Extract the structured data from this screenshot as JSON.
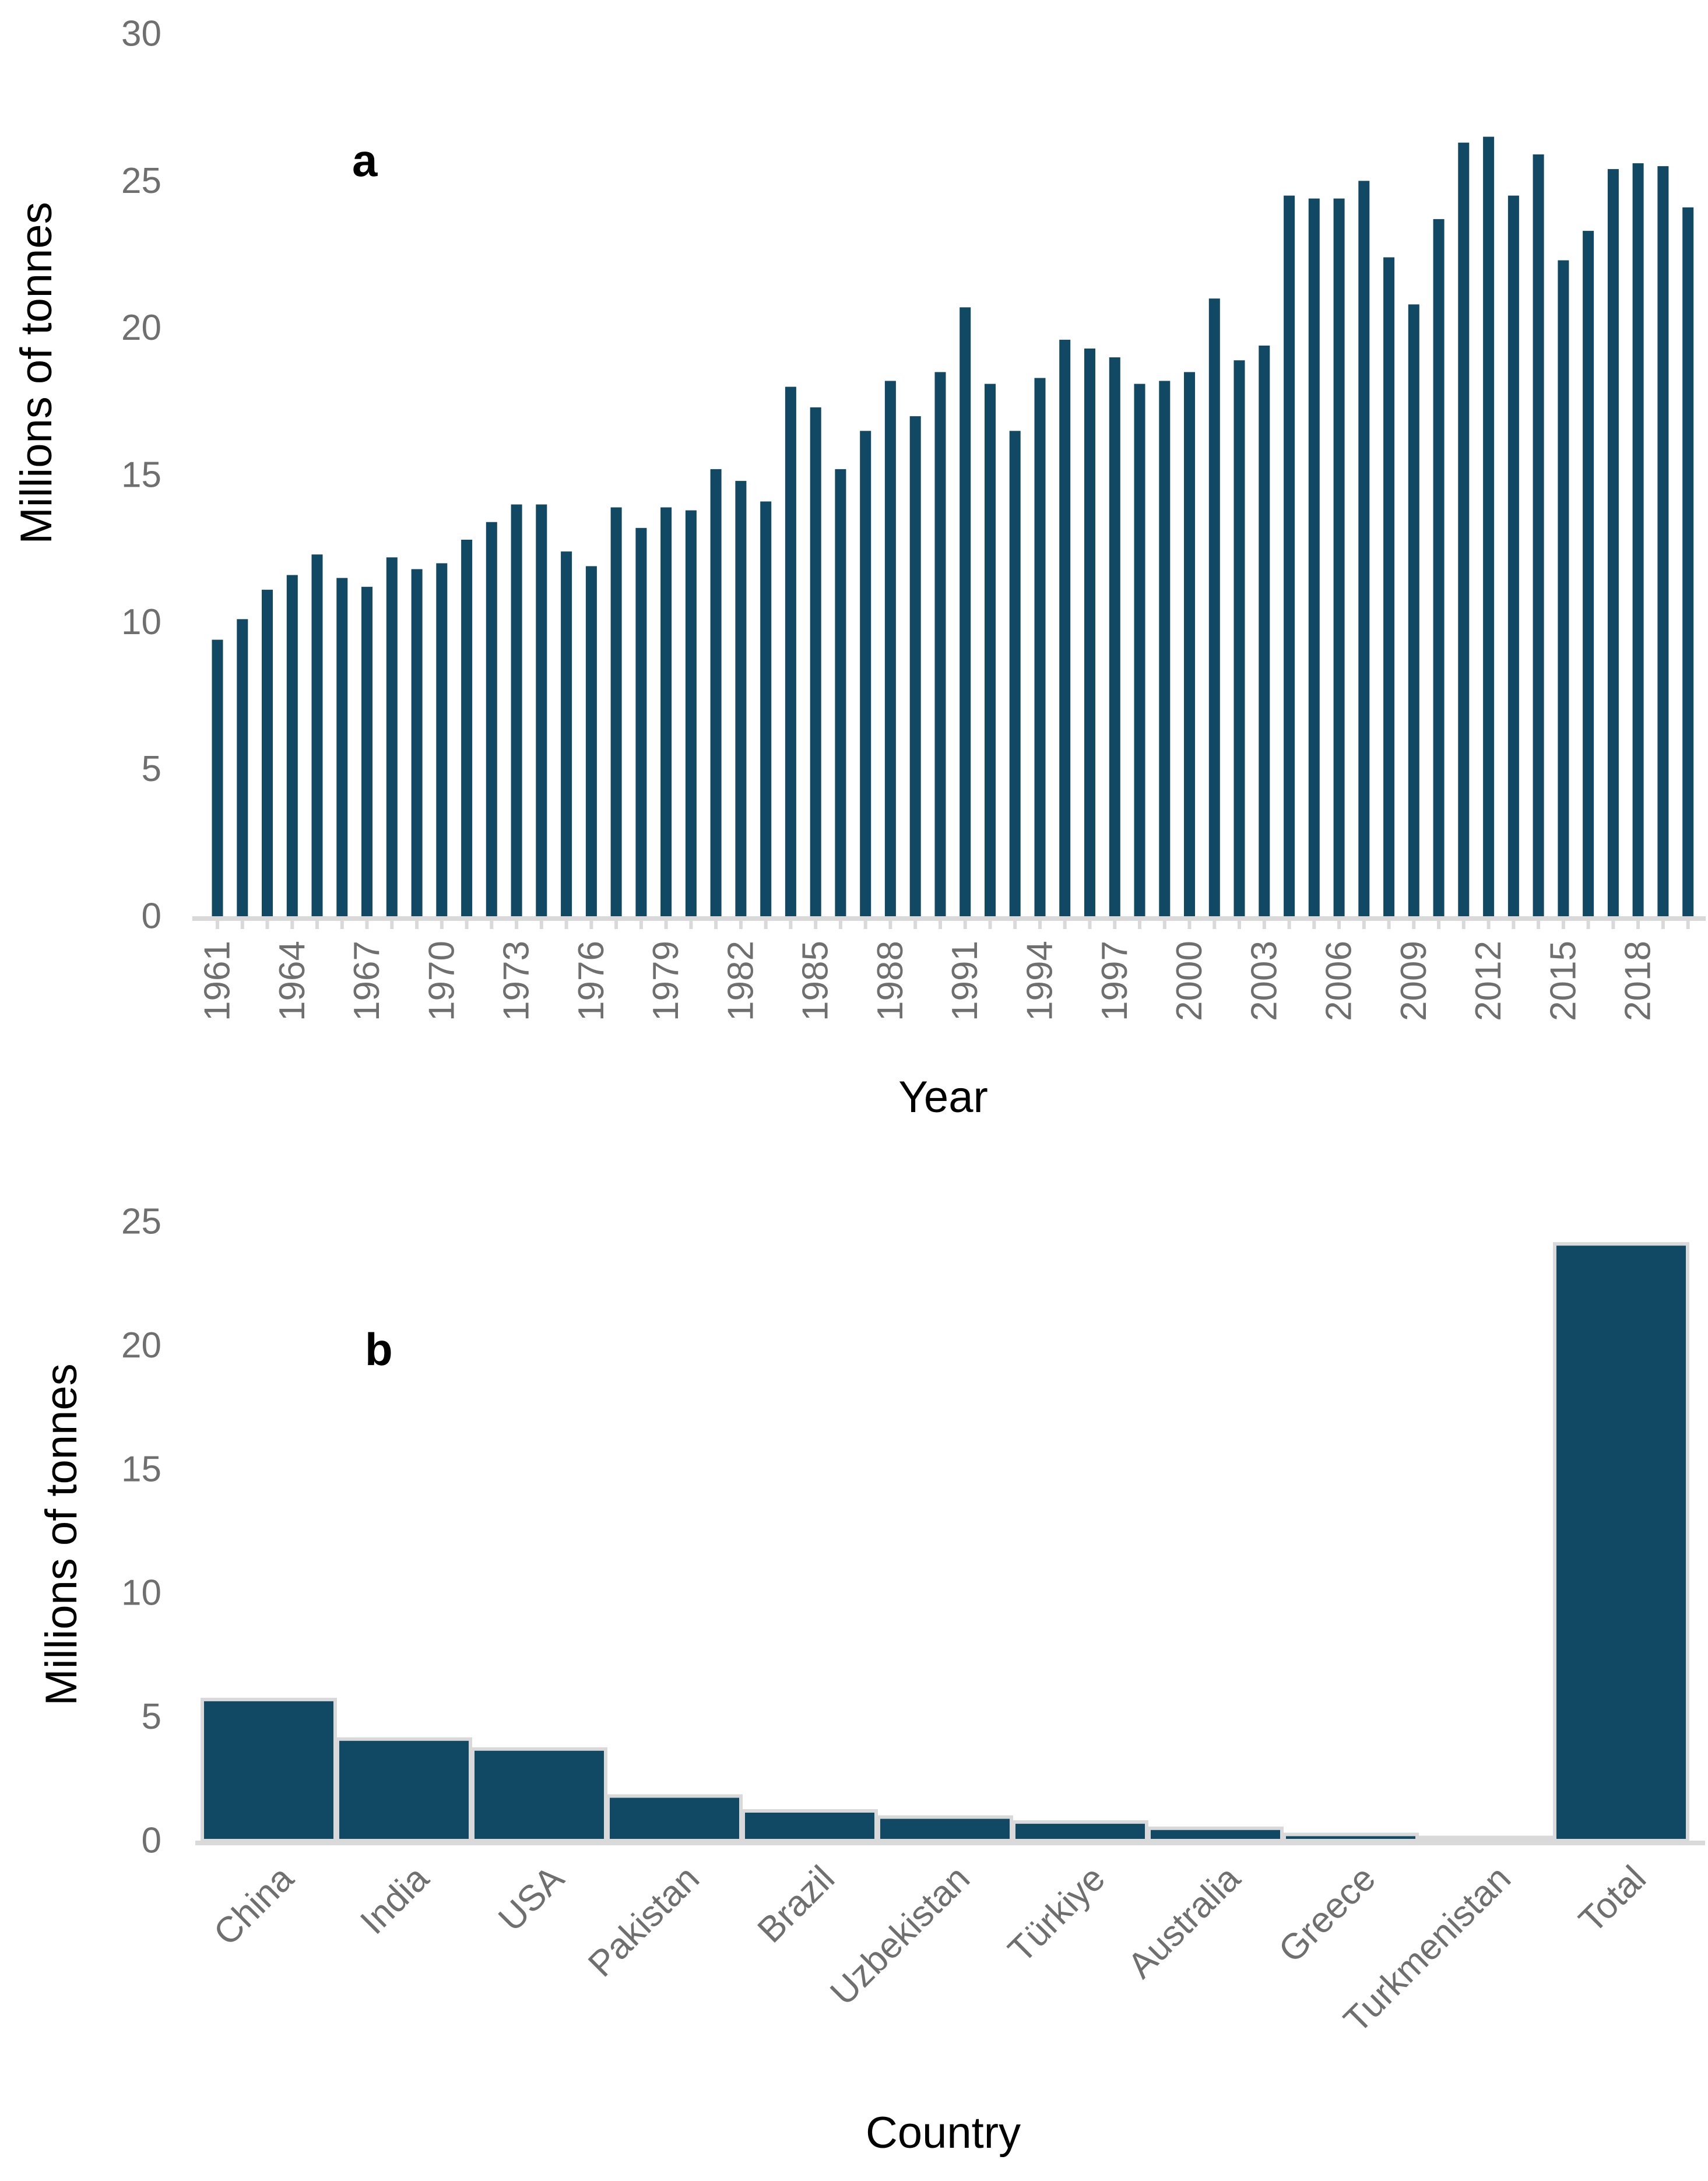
{
  "figure": {
    "panel_a_letter": "a",
    "panel_b_letter": "b"
  },
  "colors": {
    "bar_fill": "#114863",
    "bar_outline": "#d9d9d9",
    "axis_line": "#d9d9d9",
    "tick_label": "#6f6f6f",
    "title_text": "#000000",
    "background": "#ffffff"
  },
  "chart_data": [
    {
      "type": "bar",
      "panel": "a",
      "title": "",
      "xlabel": "Year",
      "ylabel": "Millions of tonnes",
      "ylim": [
        0,
        30
      ],
      "yticks": [
        0,
        5,
        10,
        15,
        20,
        25,
        30
      ],
      "xticks": [
        1961,
        1964,
        1967,
        1970,
        1973,
        1976,
        1979,
        1982,
        1985,
        1988,
        1991,
        1994,
        1997,
        2000,
        2003,
        2006,
        2009,
        2012,
        2015,
        2018
      ],
      "grid": false,
      "categories": [
        1961,
        1962,
        1963,
        1964,
        1965,
        1966,
        1967,
        1968,
        1969,
        1970,
        1971,
        1972,
        1973,
        1974,
        1975,
        1976,
        1977,
        1978,
        1979,
        1980,
        1981,
        1982,
        1983,
        1984,
        1985,
        1986,
        1987,
        1988,
        1989,
        1990,
        1991,
        1992,
        1993,
        1994,
        1995,
        1996,
        1997,
        1998,
        1999,
        2000,
        2001,
        2002,
        2003,
        2004,
        2005,
        2006,
        2007,
        2008,
        2009,
        2010,
        2011,
        2012,
        2013,
        2014,
        2015,
        2016,
        2017,
        2018,
        2019,
        2020
      ],
      "values": [
        9.4,
        10.1,
        11.1,
        11.6,
        12.3,
        11.5,
        11.2,
        12.2,
        11.8,
        12.0,
        12.8,
        13.4,
        14.0,
        14.0,
        12.4,
        11.9,
        13.9,
        13.2,
        13.9,
        13.8,
        15.2,
        14.8,
        14.1,
        18.0,
        17.3,
        15.2,
        16.5,
        18.2,
        17.0,
        18.5,
        20.7,
        18.1,
        16.5,
        18.3,
        19.6,
        19.3,
        19.0,
        18.1,
        18.2,
        18.5,
        21.0,
        18.9,
        19.4,
        24.5,
        24.4,
        24.4,
        25.0,
        22.4,
        20.8,
        23.7,
        26.3,
        26.5,
        24.5,
        25.9,
        22.3,
        23.3,
        25.4,
        25.6,
        25.5,
        24.1
      ]
    },
    {
      "type": "bar",
      "panel": "b",
      "title": "",
      "xlabel": "Country",
      "ylabel": "Millions of tonnes",
      "ylim": [
        0,
        25
      ],
      "yticks": [
        0,
        5,
        10,
        15,
        20,
        25
      ],
      "grid": false,
      "categories": [
        "China",
        "India",
        "USA",
        "Pakistan",
        "Brazil",
        "Uzbekistan",
        "Türkiye",
        "Australia",
        "Greece",
        "Turkmenistan",
        "Total"
      ],
      "values": [
        5.7,
        4.1,
        3.7,
        1.8,
        1.2,
        0.95,
        0.75,
        0.5,
        0.25,
        0.13,
        24.1
      ]
    }
  ]
}
